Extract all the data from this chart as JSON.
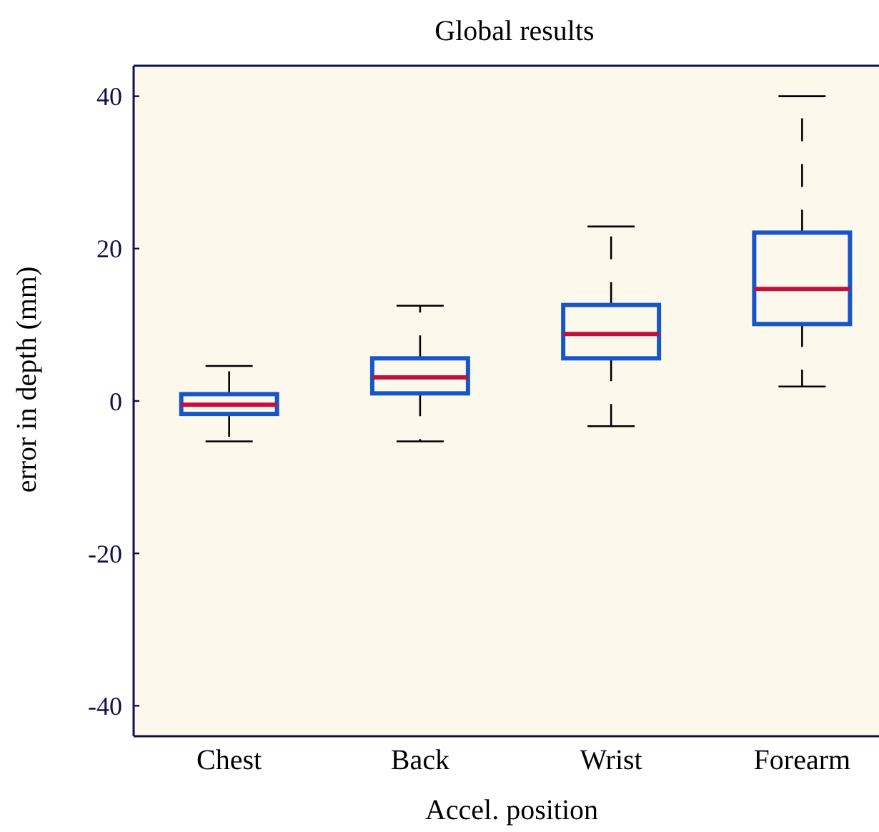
{
  "chart_data": {
    "type": "box",
    "title": "Global results",
    "xlabel": "Accel. position",
    "ylabel": "error in depth (mm)",
    "categories": [
      "Chest",
      "Back",
      "Wrist",
      "Forearm"
    ],
    "ylim": [
      -44,
      44
    ],
    "yticks": [
      -40,
      -20,
      0,
      20,
      40
    ],
    "series": [
      {
        "color": "#1656c8",
        "boxes": [
          {
            "low": -5.3,
            "q1": -1.7,
            "median": -0.5,
            "q3": 0.9,
            "high": 4.6
          },
          {
            "low": -5.3,
            "q1": 1.0,
            "median": 3.1,
            "q3": 5.6,
            "high": 12.5
          },
          {
            "low": -3.3,
            "q1": 5.6,
            "median": 8.8,
            "q3": 12.6,
            "high": 22.9
          },
          {
            "low": 1.9,
            "q1": 10.1,
            "median": 14.7,
            "q3": 22.1,
            "high": 40
          }
        ]
      }
    ]
  }
}
